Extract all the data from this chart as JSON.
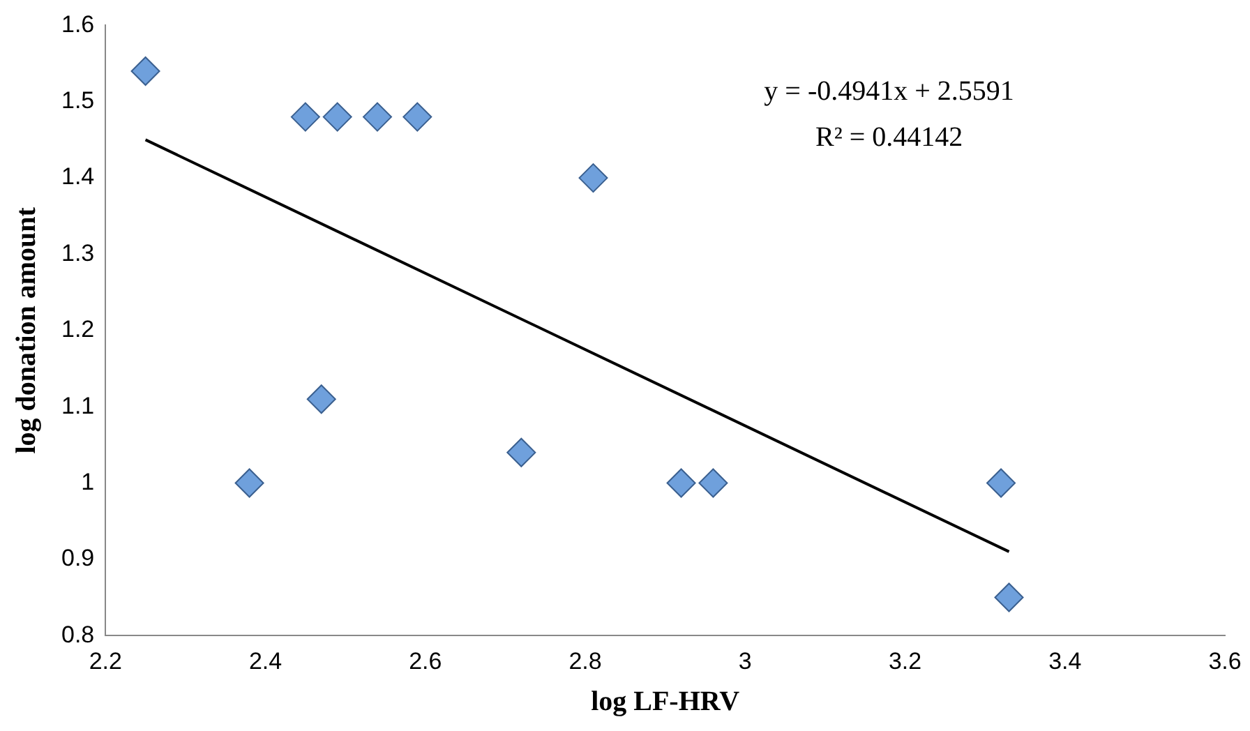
{
  "chart_data": {
    "type": "scatter",
    "xlabel": "log LF-HRV",
    "ylabel": "log donation amount",
    "annotations": [
      "y = -0.4941x + 2.5591",
      "R² = 0.44142"
    ],
    "xlim": [
      2.2,
      3.6
    ],
    "xticks": [
      2.2,
      2.4,
      2.6,
      2.8,
      3,
      3.2,
      3.4,
      3.6
    ],
    "ylim": [
      0.8,
      1.6
    ],
    "yticks": [
      0.8,
      0.9,
      1,
      1.1,
      1.2,
      1.3,
      1.4,
      1.5,
      1.6
    ],
    "grid": false,
    "legend": false,
    "marker": "diamond",
    "series": [
      {
        "color": "#6fa0dc",
        "x": [
          2.25,
          2.38,
          2.45,
          2.47,
          2.49,
          2.54,
          2.59,
          2.72,
          2.81,
          2.92,
          2.96,
          3.32,
          3.33
        ],
        "values": [
          1.54,
          1.0,
          1.48,
          1.11,
          1.48,
          1.48,
          1.48,
          1.04,
          1.4,
          1.0,
          1.0,
          1.0,
          0.85
        ]
      },
      {
        "type": "line",
        "color": "#000000",
        "marker": "none",
        "x": [
          2.25,
          3.33
        ],
        "values": [
          1.45,
          0.91
        ]
      }
    ]
  }
}
